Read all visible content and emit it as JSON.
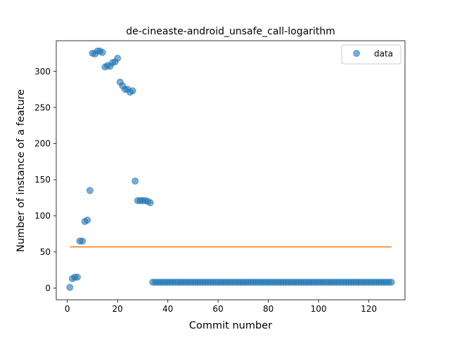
{
  "chart_data": {
    "type": "scatter",
    "title": "de-cineaste-android_unsafe_call-logarithm",
    "xlabel": "Commit number",
    "ylabel": "Number of instance of a feature",
    "xlim": [
      -4.4,
      134.4
    ],
    "ylim": [
      -16.3,
      342.3
    ],
    "xticks": [
      0,
      20,
      40,
      60,
      80,
      100,
      120
    ],
    "yticks": [
      0,
      50,
      100,
      150,
      200,
      250,
      300
    ],
    "legend": {
      "position": "top-right",
      "entries": [
        "data"
      ]
    },
    "grid": false,
    "series": [
      {
        "name": "data",
        "kind": "scatter",
        "color": "#1f77b4",
        "x": [
          1,
          2,
          3,
          4,
          5,
          6,
          7,
          8,
          9,
          10,
          11,
          12,
          13,
          14,
          15,
          16,
          17,
          18,
          19,
          20,
          21,
          22,
          23,
          24,
          25,
          26,
          27,
          28,
          29,
          30,
          31,
          32,
          33,
          34,
          35,
          36,
          37,
          38,
          39,
          40,
          41,
          42,
          43,
          44,
          45,
          46,
          47,
          48,
          49,
          50,
          51,
          52,
          53,
          54,
          55,
          56,
          57,
          58,
          59,
          60,
          61,
          62,
          63,
          64,
          65,
          66,
          67,
          68,
          69,
          70,
          71,
          72,
          73,
          74,
          75,
          76,
          77,
          78,
          79,
          80,
          81,
          82,
          83,
          84,
          85,
          86,
          87,
          88,
          89,
          90,
          91,
          92,
          93,
          94,
          95,
          96,
          97,
          98,
          99,
          100,
          101,
          102,
          103,
          104,
          105,
          106,
          107,
          108,
          109,
          110,
          111,
          112,
          113,
          114,
          115,
          116,
          117,
          118,
          119,
          120,
          121,
          122,
          123,
          124,
          125,
          126,
          127,
          128,
          129
        ],
        "y": [
          1,
          13,
          15,
          15,
          65,
          65,
          92,
          94,
          135,
          325,
          324,
          328,
          328,
          326,
          306,
          308,
          307,
          312,
          313,
          318,
          285,
          280,
          275,
          275,
          271,
          273,
          148,
          121,
          121,
          121,
          121,
          120,
          118,
          8,
          8,
          8,
          8,
          8,
          8,
          8,
          8,
          8,
          8,
          8,
          8,
          8,
          8,
          8,
          8,
          8,
          8,
          8,
          8,
          8,
          8,
          8,
          8,
          8,
          8,
          8,
          8,
          8,
          8,
          8,
          8,
          8,
          8,
          8,
          8,
          8,
          8,
          8,
          8,
          8,
          8,
          8,
          8,
          8,
          8,
          8,
          8,
          8,
          8,
          8,
          8,
          8,
          8,
          8,
          8,
          8,
          8,
          8,
          8,
          8,
          8,
          8,
          8,
          8,
          8,
          8,
          8,
          8,
          8,
          8,
          8,
          8,
          8,
          8,
          8,
          8,
          8,
          8,
          8,
          8,
          8,
          8,
          8,
          8,
          8,
          8,
          8,
          8,
          8,
          8,
          8,
          8,
          8,
          8,
          8
        ]
      },
      {
        "name": "",
        "kind": "line",
        "color": "#ff7f0e",
        "x": [
          1,
          129
        ],
        "y": [
          57,
          57
        ]
      }
    ]
  }
}
